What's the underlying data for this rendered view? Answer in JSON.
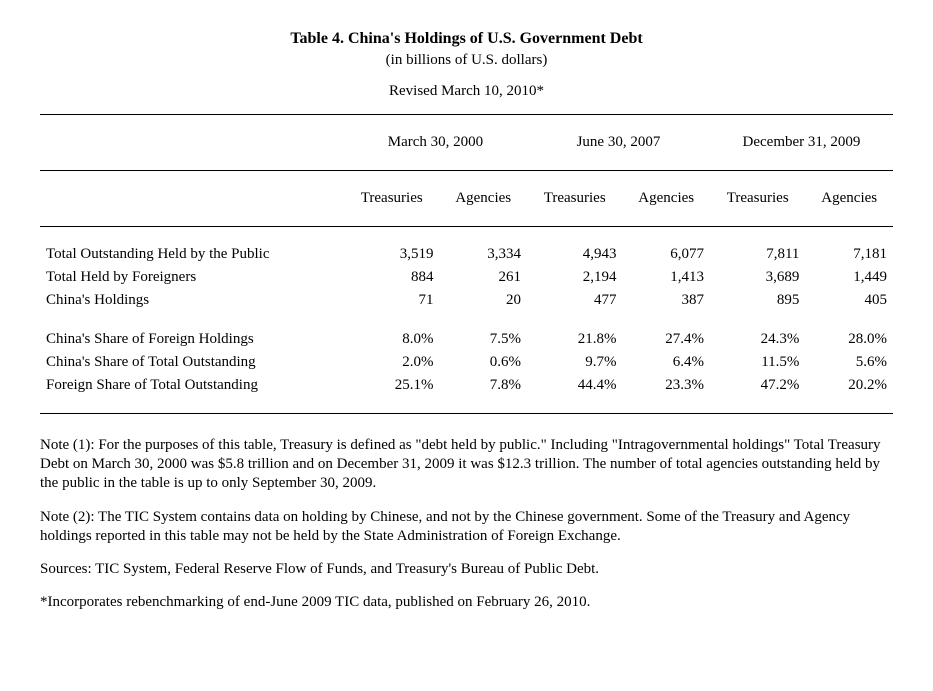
{
  "header": {
    "title": "Table 4. China's Holdings of U.S. Government Debt",
    "subtitle": "(in billions of U.S. dollars)",
    "revised": "Revised March 10, 2010*"
  },
  "table": {
    "date_headers": [
      "March 30, 2000",
      "June 30, 2007",
      "December 31, 2009"
    ],
    "sub_headers": [
      "Treasuries",
      "Agencies",
      "Treasuries",
      "Agencies",
      "Treasuries",
      "Agencies"
    ],
    "section1": [
      {
        "label": "Total Outstanding Held by the Public",
        "vals": [
          "3,519",
          "3,334",
          "4,943",
          "6,077",
          "7,811",
          "7,181"
        ]
      },
      {
        "label": "Total Held by Foreigners",
        "vals": [
          "884",
          "261",
          "2,194",
          "1,413",
          "3,689",
          "1,449"
        ]
      },
      {
        "label": "China's Holdings",
        "vals": [
          "71",
          "20",
          "477",
          "387",
          "895",
          "405"
        ]
      }
    ],
    "section2": [
      {
        "label": "China's Share of Foreign Holdings",
        "vals": [
          "8.0%",
          "7.5%",
          "21.8%",
          "27.4%",
          "24.3%",
          "28.0%"
        ]
      },
      {
        "label": "China's Share of Total Outstanding",
        "vals": [
          "2.0%",
          "0.6%",
          "9.7%",
          "6.4%",
          "11.5%",
          "5.6%"
        ]
      },
      {
        "label": "Foreign Share of Total Outstanding",
        "vals": [
          "25.1%",
          "7.8%",
          "44.4%",
          "23.3%",
          "47.2%",
          "20.2%"
        ]
      }
    ]
  },
  "notes": {
    "n1": "Note (1): For the purposes of this table, Treasury is defined as \"debt held by public.\"  Including \"Intragovernmental holdings\" Total Treasury Debt on March 30, 2000 was $5.8 trillion and on December 31, 2009 it was $12.3 trillion. The number of total agencies outstanding held by the public in the table is up to only September 30, 2009.",
    "n2": "Note (2): The TIC System contains data on holding by Chinese, and not by the Chinese government.  Some of the Treasury and Agency holdings reported in this table may not be held by the State Administration of Foreign Exchange.",
    "sources": "Sources: TIC System, Federal Reserve Flow of Funds, and Treasury's Bureau of Public Debt.",
    "footnote": "*Incorporates rebenchmarking of end-June 2009 TIC data, published on February 26, 2010."
  }
}
